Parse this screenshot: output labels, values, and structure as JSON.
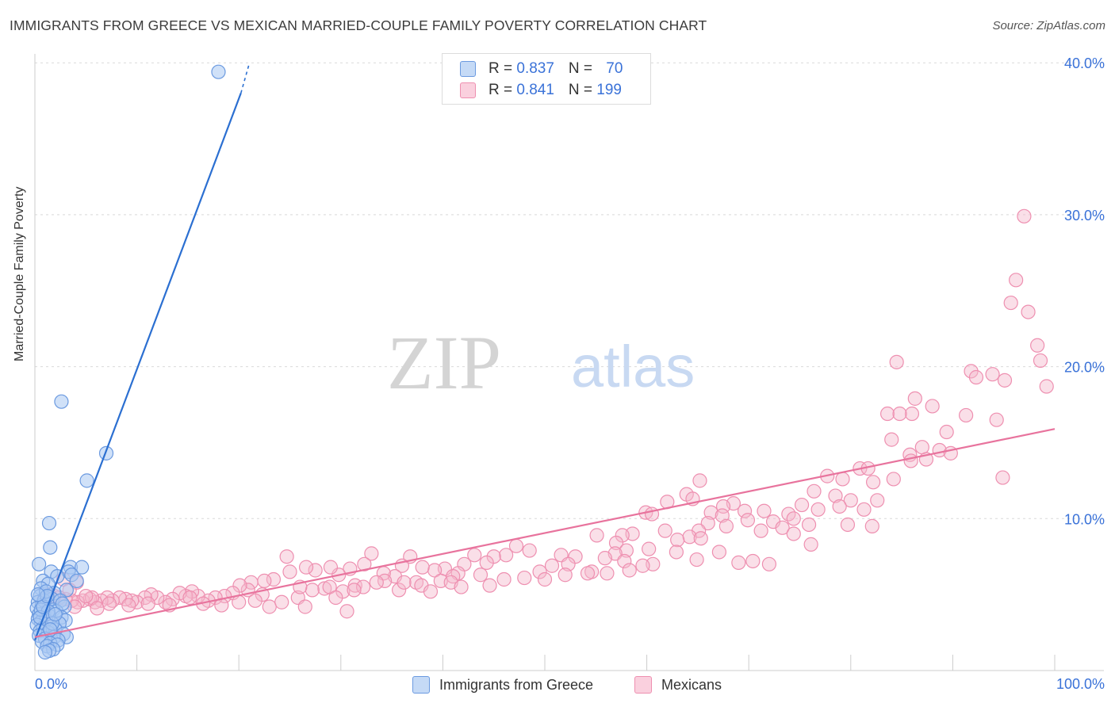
{
  "header": {
    "title": "IMMIGRANTS FROM GREECE VS MEXICAN MARRIED-COUPLE FAMILY POVERTY CORRELATION CHART",
    "source": "Source: ZipAtlas.com"
  },
  "watermark": {
    "zip": "ZIP",
    "atlas": "atlas"
  },
  "legend": {
    "rows": [
      {
        "r_label": "R = ",
        "r_value": "0.837",
        "n_label": "N = ",
        "n_value": "70"
      },
      {
        "r_label": "R = ",
        "r_value": "0.841",
        "n_label": "N = ",
        "n_value": "199"
      }
    ]
  },
  "bottom_legend": {
    "greece": "Immigrants from Greece",
    "mexicans": "Mexicans"
  },
  "colors": {
    "greece_fill": "#aac8f2",
    "greece_stroke": "#6b9ae0",
    "greece_line": "#2b6fd1",
    "mexicans_fill": "#f5b8cd",
    "mexicans_stroke": "#ee8fb0",
    "mexicans_line": "#e8739d",
    "tick_label": "#3a72d8",
    "grid": "#d9d9d9"
  },
  "chart_data": {
    "type": "scatter",
    "title": "IMMIGRANTS FROM GREECE VS MEXICAN MARRIED-COUPLE FAMILY POVERTY CORRELATION CHART",
    "xlabel": "",
    "ylabel": "Married-Couple Family Poverty",
    "xlim": [
      0,
      100
    ],
    "ylim": [
      0,
      42
    ],
    "x_tick_labels": [
      "0.0%",
      "100.0%"
    ],
    "y_ticks": [
      10,
      20,
      30,
      40
    ],
    "y_tick_labels": [
      "10.0%",
      "20.0%",
      "30.0%",
      "40.0%"
    ],
    "grid": true,
    "legend_position": "top-center",
    "series": [
      {
        "name": "Immigrants from Greece",
        "R": 0.837,
        "N": 70,
        "trend": {
          "x": [
            0,
            20.2
          ],
          "y": [
            2.0,
            38.0
          ],
          "dashed_x": [
            20.2,
            21.0
          ],
          "dashed_y": [
            38.0,
            39.9
          ]
        },
        "points": [
          [
            18.0,
            39.4
          ],
          [
            2.6,
            17.7
          ],
          [
            7.0,
            14.3
          ],
          [
            5.1,
            12.5
          ],
          [
            1.4,
            9.7
          ],
          [
            1.5,
            8.1
          ],
          [
            0.4,
            7.0
          ],
          [
            3.5,
            6.8
          ],
          [
            4.6,
            6.8
          ],
          [
            1.6,
            6.5
          ],
          [
            3.3,
            6.5
          ],
          [
            3.6,
            6.3
          ],
          [
            2.2,
            6.2
          ],
          [
            0.8,
            5.9
          ],
          [
            4.1,
            5.9
          ],
          [
            1.3,
            5.7
          ],
          [
            0.6,
            5.4
          ],
          [
            3.1,
            5.3
          ],
          [
            1.9,
            5.1
          ],
          [
            0.5,
            4.9
          ],
          [
            1.0,
            4.8
          ],
          [
            1.7,
            4.7
          ],
          [
            2.5,
            4.6
          ],
          [
            0.3,
            4.5
          ],
          [
            1.2,
            4.4
          ],
          [
            0.7,
            4.3
          ],
          [
            2.9,
            4.2
          ],
          [
            0.2,
            4.1
          ],
          [
            1.8,
            4.0
          ],
          [
            2.1,
            3.9
          ],
          [
            0.9,
            3.8
          ],
          [
            0.4,
            3.7
          ],
          [
            1.4,
            3.6
          ],
          [
            2.6,
            3.5
          ],
          [
            0.3,
            3.4
          ],
          [
            1.1,
            3.3
          ],
          [
            3.0,
            3.3
          ],
          [
            0.6,
            3.2
          ],
          [
            2.4,
            3.1
          ],
          [
            0.2,
            3.0
          ],
          [
            1.6,
            2.9
          ],
          [
            0.8,
            2.8
          ],
          [
            2.0,
            2.7
          ],
          [
            0.5,
            2.6
          ],
          [
            1.3,
            2.5
          ],
          [
            2.8,
            2.4
          ],
          [
            0.4,
            2.3
          ],
          [
            1.9,
            2.2
          ],
          [
            3.1,
            2.2
          ],
          [
            1.0,
            2.1
          ],
          [
            2.3,
            2.0
          ],
          [
            0.7,
            1.9
          ],
          [
            1.5,
            1.8
          ],
          [
            2.2,
            1.7
          ],
          [
            1.2,
            1.6
          ],
          [
            1.8,
            1.4
          ],
          [
            1.4,
            1.3
          ],
          [
            1.0,
            1.2
          ],
          [
            0.9,
            4.6
          ],
          [
            1.1,
            5.2
          ],
          [
            0.6,
            4.0
          ],
          [
            1.3,
            3.9
          ],
          [
            0.5,
            3.5
          ],
          [
            0.8,
            4.2
          ],
          [
            1.7,
            3.1
          ],
          [
            2.7,
            4.4
          ],
          [
            1.2,
            4.9
          ],
          [
            0.3,
            5.0
          ],
          [
            2.0,
            3.7
          ],
          [
            1.5,
            2.7
          ]
        ]
      },
      {
        "name": "Mexicans",
        "R": 0.841,
        "N": 199,
        "trend": {
          "x": [
            0,
            100
          ],
          "y": [
            2.2,
            15.9
          ]
        },
        "points": [
          [
            97.0,
            29.9
          ],
          [
            96.2,
            25.7
          ],
          [
            95.7,
            24.2
          ],
          [
            97.4,
            23.6
          ],
          [
            98.3,
            21.4
          ],
          [
            98.6,
            20.4
          ],
          [
            99.2,
            18.7
          ],
          [
            95.1,
            19.1
          ],
          [
            93.9,
            19.5
          ],
          [
            91.8,
            19.7
          ],
          [
            92.3,
            19.3
          ],
          [
            84.5,
            20.3
          ],
          [
            86.3,
            17.9
          ],
          [
            88.0,
            17.4
          ],
          [
            86.0,
            16.9
          ],
          [
            83.6,
            16.9
          ],
          [
            84.8,
            16.9
          ],
          [
            91.3,
            16.8
          ],
          [
            94.3,
            16.5
          ],
          [
            89.4,
            15.7
          ],
          [
            84.0,
            15.2
          ],
          [
            87.0,
            14.7
          ],
          [
            85.8,
            14.2
          ],
          [
            88.7,
            14.5
          ],
          [
            89.8,
            14.3
          ],
          [
            80.9,
            13.3
          ],
          [
            81.7,
            13.3
          ],
          [
            87.4,
            13.9
          ],
          [
            85.9,
            13.8
          ],
          [
            94.9,
            12.7
          ],
          [
            77.7,
            12.8
          ],
          [
            79.2,
            12.6
          ],
          [
            82.2,
            12.4
          ],
          [
            84.2,
            12.6
          ],
          [
            76.4,
            11.8
          ],
          [
            78.5,
            11.5
          ],
          [
            80.0,
            11.2
          ],
          [
            82.6,
            11.2
          ],
          [
            78.9,
            10.8
          ],
          [
            75.2,
            10.9
          ],
          [
            76.8,
            10.6
          ],
          [
            73.9,
            10.3
          ],
          [
            81.3,
            10.6
          ],
          [
            74.4,
            10.0
          ],
          [
            72.4,
            9.8
          ],
          [
            73.3,
            9.4
          ],
          [
            75.9,
            9.6
          ],
          [
            79.7,
            9.6
          ],
          [
            82.1,
            9.5
          ],
          [
            65.2,
            12.5
          ],
          [
            71.5,
            10.5
          ],
          [
            69.6,
            10.5
          ],
          [
            68.5,
            11.0
          ],
          [
            67.5,
            10.8
          ],
          [
            63.9,
            11.6
          ],
          [
            62.0,
            11.1
          ],
          [
            64.5,
            11.3
          ],
          [
            59.9,
            10.4
          ],
          [
            60.5,
            10.3
          ],
          [
            66.3,
            10.4
          ],
          [
            67.4,
            10.2
          ],
          [
            69.9,
            9.9
          ],
          [
            71.2,
            9.2
          ],
          [
            74.4,
            9.0
          ],
          [
            76.1,
            8.3
          ],
          [
            66.0,
            9.7
          ],
          [
            67.8,
            9.5
          ],
          [
            65.1,
            9.2
          ],
          [
            61.8,
            9.2
          ],
          [
            64.2,
            8.8
          ],
          [
            65.3,
            8.7
          ],
          [
            63.0,
            8.6
          ],
          [
            58.6,
            9.0
          ],
          [
            57.6,
            8.9
          ],
          [
            55.1,
            8.9
          ],
          [
            57.0,
            8.4
          ],
          [
            60.2,
            8.0
          ],
          [
            58.0,
            7.9
          ],
          [
            56.9,
            7.7
          ],
          [
            55.9,
            7.4
          ],
          [
            57.8,
            7.2
          ],
          [
            62.9,
            7.8
          ],
          [
            67.1,
            7.8
          ],
          [
            70.4,
            7.2
          ],
          [
            72.0,
            7.0
          ],
          [
            69.0,
            7.1
          ],
          [
            64.9,
            7.3
          ],
          [
            60.6,
            7.0
          ],
          [
            59.6,
            6.9
          ],
          [
            58.3,
            6.6
          ],
          [
            56.1,
            6.4
          ],
          [
            54.6,
            6.5
          ],
          [
            53.0,
            7.5
          ],
          [
            51.6,
            7.6
          ],
          [
            52.3,
            7.0
          ],
          [
            50.7,
            6.9
          ],
          [
            49.5,
            6.5
          ],
          [
            47.2,
            8.2
          ],
          [
            48.5,
            7.9
          ],
          [
            46.2,
            7.6
          ],
          [
            45.0,
            7.5
          ],
          [
            43.1,
            7.6
          ],
          [
            44.3,
            7.1
          ],
          [
            42.1,
            7.0
          ],
          [
            41.5,
            6.4
          ],
          [
            40.2,
            6.7
          ],
          [
            39.2,
            6.6
          ],
          [
            38.0,
            6.8
          ],
          [
            36.8,
            7.5
          ],
          [
            36.0,
            6.9
          ],
          [
            35.3,
            6.2
          ],
          [
            34.2,
            6.4
          ],
          [
            33.0,
            7.7
          ],
          [
            32.3,
            7.0
          ],
          [
            30.9,
            6.7
          ],
          [
            29.8,
            6.3
          ],
          [
            29.0,
            6.8
          ],
          [
            27.5,
            6.6
          ],
          [
            26.6,
            6.8
          ],
          [
            25.0,
            6.5
          ],
          [
            24.7,
            7.5
          ],
          [
            23.4,
            6.0
          ],
          [
            22.5,
            5.9
          ],
          [
            21.2,
            5.8
          ],
          [
            20.9,
            5.3
          ],
          [
            20.1,
            5.6
          ],
          [
            19.4,
            5.1
          ],
          [
            18.6,
            4.9
          ],
          [
            17.7,
            4.8
          ],
          [
            17.0,
            4.6
          ],
          [
            16.0,
            4.9
          ],
          [
            15.4,
            5.2
          ],
          [
            14.8,
            4.9
          ],
          [
            14.2,
            5.1
          ],
          [
            13.5,
            4.7
          ],
          [
            12.8,
            4.5
          ],
          [
            12.0,
            4.8
          ],
          [
            11.4,
            5.0
          ],
          [
            10.8,
            4.8
          ],
          [
            10.0,
            4.5
          ],
          [
            9.5,
            4.6
          ],
          [
            8.9,
            4.7
          ],
          [
            8.3,
            4.8
          ],
          [
            7.6,
            4.6
          ],
          [
            7.1,
            4.8
          ],
          [
            6.5,
            4.6
          ],
          [
            5.9,
            4.5
          ],
          [
            5.4,
            4.7
          ],
          [
            4.7,
            4.6
          ],
          [
            4.2,
            4.5
          ],
          [
            3.6,
            4.6
          ],
          [
            3.0,
            4.7
          ],
          [
            2.4,
            4.8
          ],
          [
            1.9,
            4.9
          ],
          [
            1.4,
            5.0
          ],
          [
            0.9,
            4.7
          ],
          [
            28.4,
            5.4
          ],
          [
            31.4,
            5.6
          ],
          [
            34.3,
            5.9
          ],
          [
            37.4,
            5.8
          ],
          [
            39.8,
            5.9
          ],
          [
            41.0,
            6.2
          ],
          [
            43.7,
            6.3
          ],
          [
            46.0,
            6.0
          ],
          [
            48.0,
            6.1
          ],
          [
            50.0,
            6.0
          ],
          [
            52.0,
            6.3
          ],
          [
            54.2,
            6.4
          ],
          [
            27.2,
            5.3
          ],
          [
            25.8,
            4.8
          ],
          [
            26.5,
            4.2
          ],
          [
            28.9,
            5.5
          ],
          [
            30.2,
            5.2
          ],
          [
            32.2,
            5.5
          ],
          [
            33.5,
            5.8
          ],
          [
            35.7,
            5.3
          ],
          [
            37.9,
            5.6
          ],
          [
            38.8,
            5.2
          ],
          [
            40.8,
            5.8
          ],
          [
            22.3,
            5.0
          ],
          [
            21.6,
            4.6
          ],
          [
            20.0,
            4.5
          ],
          [
            18.3,
            4.3
          ],
          [
            16.5,
            4.4
          ],
          [
            15.2,
            4.8
          ],
          [
            13.2,
            4.3
          ],
          [
            11.1,
            4.4
          ],
          [
            9.2,
            4.3
          ],
          [
            7.3,
            4.4
          ],
          [
            5.6,
            4.8
          ],
          [
            3.9,
            4.2
          ],
          [
            6.1,
            4.1
          ],
          [
            26.0,
            5.5
          ],
          [
            31.3,
            5.3
          ],
          [
            36.2,
            5.8
          ],
          [
            41.8,
            5.5
          ],
          [
            44.6,
            5.6
          ],
          [
            30.6,
            3.9
          ],
          [
            29.5,
            4.8
          ],
          [
            23.0,
            4.2
          ],
          [
            24.2,
            4.5
          ],
          [
            4.1,
            5.8
          ],
          [
            2.8,
            6.0
          ],
          [
            5.0,
            4.9
          ],
          [
            3.4,
            5.3
          ]
        ]
      }
    ]
  }
}
